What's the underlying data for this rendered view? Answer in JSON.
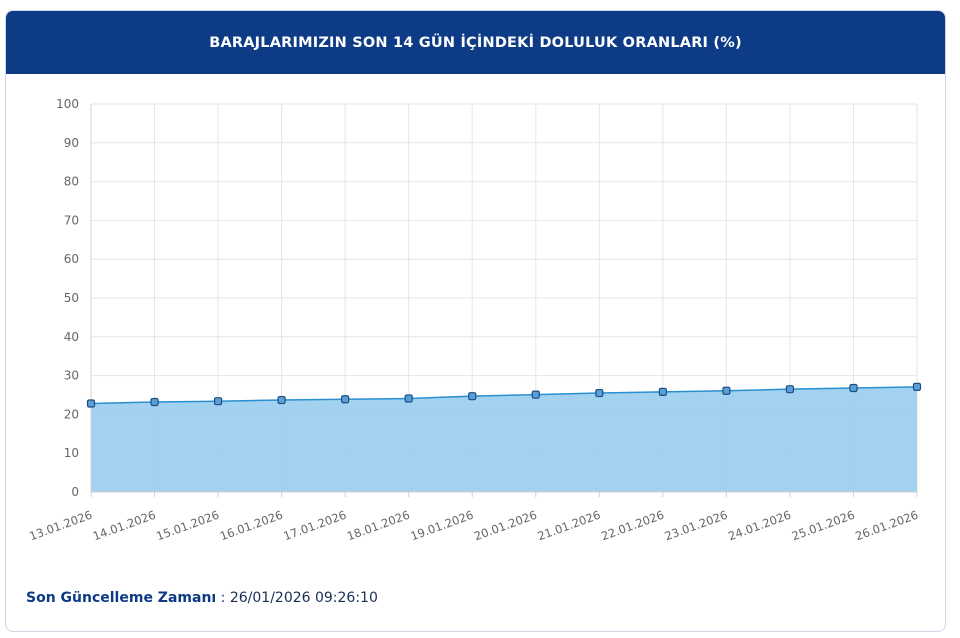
{
  "header": {
    "title": "BARAJLARIMIZIN SON 14 GÜN İÇİNDEKİ DOLULUK ORANLARI (%)"
  },
  "footer": {
    "label": "Son Güncelleme Zamanı",
    "separator": " : ",
    "value": "26/01/2026 09:26:10"
  },
  "colors": {
    "header_bg": "#0d3b85",
    "area_fill": "#9dd0ee",
    "line": "#2a8fd0",
    "marker": "#5a9fd6"
  },
  "chart_data": {
    "type": "area",
    "title": "",
    "xlabel": "",
    "ylabel": "",
    "ylim": [
      0,
      100
    ],
    "yticks": [
      0,
      10,
      20,
      30,
      40,
      50,
      60,
      70,
      80,
      90,
      100
    ],
    "grid": true,
    "categories": [
      "13.01.2026",
      "14.01.2026",
      "15.01.2026",
      "16.01.2026",
      "17.01.2026",
      "18.01.2026",
      "19.01.2026",
      "20.01.2026",
      "21.01.2026",
      "22.01.2026",
      "23.01.2026",
      "24.01.2026",
      "25.01.2026",
      "26.01.2026"
    ],
    "values": [
      22.8,
      23.2,
      23.4,
      23.7,
      23.9,
      24.1,
      24.7,
      25.1,
      25.5,
      25.8,
      26.1,
      26.5,
      26.8,
      27.1
    ]
  }
}
